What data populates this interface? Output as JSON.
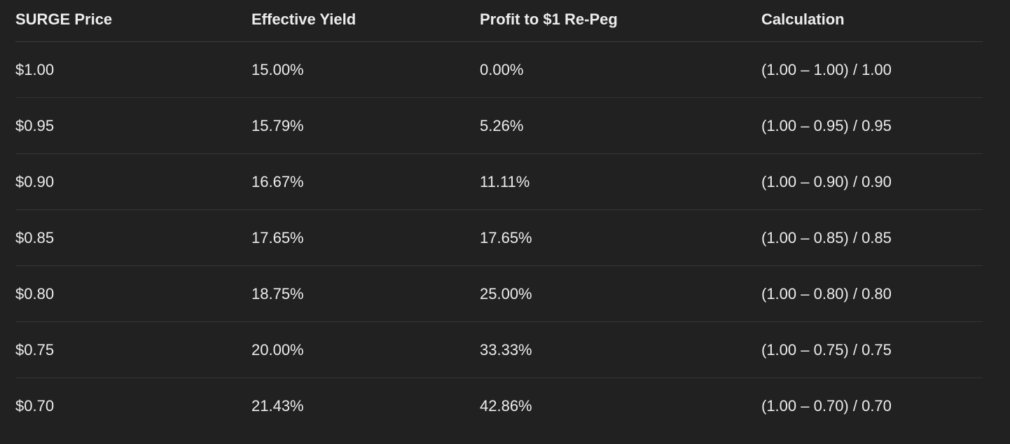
{
  "table": {
    "header": [
      "SURGE Price",
      "Effective Yield",
      "Profit to $1 Re-Peg",
      "Calculation"
    ],
    "rows": [
      [
        "$1.00",
        "15.00%",
        "0.00%",
        "(1.00 – 1.00) / 1.00"
      ],
      [
        "$0.95",
        "15.79%",
        "5.26%",
        "(1.00 – 0.95) / 0.95"
      ],
      [
        "$0.90",
        "16.67%",
        "11.11%",
        "(1.00 – 0.90) / 0.90"
      ],
      [
        "$0.85",
        "17.65%",
        "17.65%",
        "(1.00 – 0.85) / 0.85"
      ],
      [
        "$0.80",
        "18.75%",
        "25.00%",
        "(1.00 – 0.80) / 0.80"
      ],
      [
        "$0.75",
        "20.00%",
        "33.33%",
        "(1.00 – 0.75) / 0.75"
      ],
      [
        "$0.70",
        "21.43%",
        "42.86%",
        "(1.00 – 0.70) / 0.70"
      ]
    ]
  }
}
